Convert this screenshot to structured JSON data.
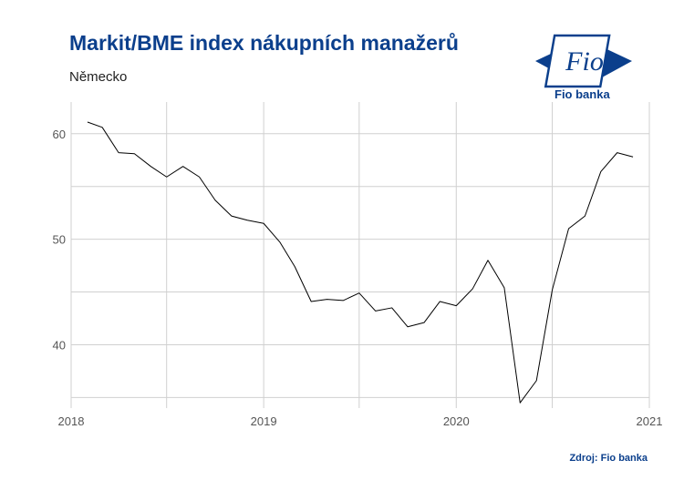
{
  "title": "Markit/BME index nákupních manažerů",
  "subtitle": "Německo",
  "logo": {
    "mark": "Fio",
    "label": "Fio banka"
  },
  "source": "Zdroj: Fio banka",
  "colors": {
    "brand": "#0b3f8c",
    "line": "#000000",
    "grid": "#d0d0d0"
  },
  "chart_data": {
    "type": "line",
    "title": "",
    "xlabel": "",
    "ylabel": "",
    "xlim": [
      "2018-01-01",
      "2021-01-01"
    ],
    "ylim": [
      34,
      63
    ],
    "x_ticks": [
      "2018",
      "2019",
      "2020",
      "2021"
    ],
    "y_ticks": [
      40,
      50,
      60
    ],
    "grid": true,
    "legend": "none",
    "series": [
      {
        "x": [
          "2018-02",
          "2018-03",
          "2018-04",
          "2018-05",
          "2018-06",
          "2018-07",
          "2018-08",
          "2018-09",
          "2018-10",
          "2018-11",
          "2018-12",
          "2019-01",
          "2019-02",
          "2019-03",
          "2019-04",
          "2019-05",
          "2019-06",
          "2019-07",
          "2019-08",
          "2019-09",
          "2019-10",
          "2019-11",
          "2019-12",
          "2020-01",
          "2020-02",
          "2020-03",
          "2020-04",
          "2020-05",
          "2020-06",
          "2020-07",
          "2020-08",
          "2020-09",
          "2020-10",
          "2020-11",
          "2020-12"
        ],
        "values": [
          61.1,
          60.6,
          58.2,
          58.1,
          56.9,
          55.9,
          56.9,
          55.9,
          53.7,
          52.2,
          51.8,
          51.5,
          49.7,
          47.4,
          44.1,
          44.3,
          44.2,
          44.9,
          43.2,
          43.5,
          41.7,
          42.1,
          44.1,
          43.7,
          45.3,
          48.0,
          45.4,
          34.5,
          36.6,
          45.2,
          51.0,
          52.2,
          56.4,
          58.2,
          57.8
        ]
      }
    ]
  }
}
